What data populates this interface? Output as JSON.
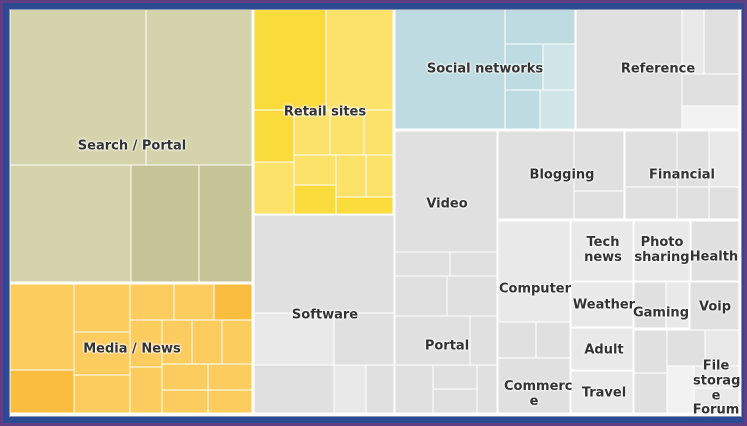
{
  "chart_data": {
    "type": "treemap",
    "title": "",
    "colors": {
      "search": "#d4d3ab",
      "search_dark": "#c5c497",
      "retail": "#fde26a",
      "retail_dark": "#fadb3c",
      "media": "#fdcc5e",
      "media_dark": "#fbbd3f",
      "social": "#bddbe0",
      "social_light": "#cfe5e8",
      "gray": "#e0e0e0",
      "gray_light": "#e9e9e9",
      "gray_white": "#f2f2f2",
      "frame": "#2a4b92",
      "outer": "#5e3f86"
    },
    "categories": [
      {
        "name": "Search / Portal",
        "label": "Search / Portal"
      },
      {
        "name": "Retail sites",
        "label": "Retail sites"
      },
      {
        "name": "Media / News",
        "label": "Media / News"
      },
      {
        "name": "Social networks",
        "label": "Social networks"
      },
      {
        "name": "Reference",
        "label": "Reference"
      },
      {
        "name": "Software",
        "label": "Software"
      },
      {
        "name": "Video",
        "label": "Video"
      },
      {
        "name": "Portal",
        "label": "Portal"
      },
      {
        "name": "Blogging",
        "label": "Blogging"
      },
      {
        "name": "Financial",
        "label": "Financial"
      },
      {
        "name": "Computer",
        "label": "Computer"
      },
      {
        "name": "Commerce",
        "label": "Commerc e"
      },
      {
        "name": "Tech news",
        "label": "Tech news"
      },
      {
        "name": "Photo sharing",
        "label": "Photo sharing"
      },
      {
        "name": "Health",
        "label": "Health"
      },
      {
        "name": "Weather",
        "label": "Weather"
      },
      {
        "name": "Gaming",
        "label": "Gaming"
      },
      {
        "name": "Voip",
        "label": "Voip"
      },
      {
        "name": "Adult",
        "label": "Adult"
      },
      {
        "name": "Travel",
        "label": "Travel"
      },
      {
        "name": "File storage",
        "label": "File storag e"
      },
      {
        "name": "Forum",
        "label": "Forum"
      }
    ]
  }
}
